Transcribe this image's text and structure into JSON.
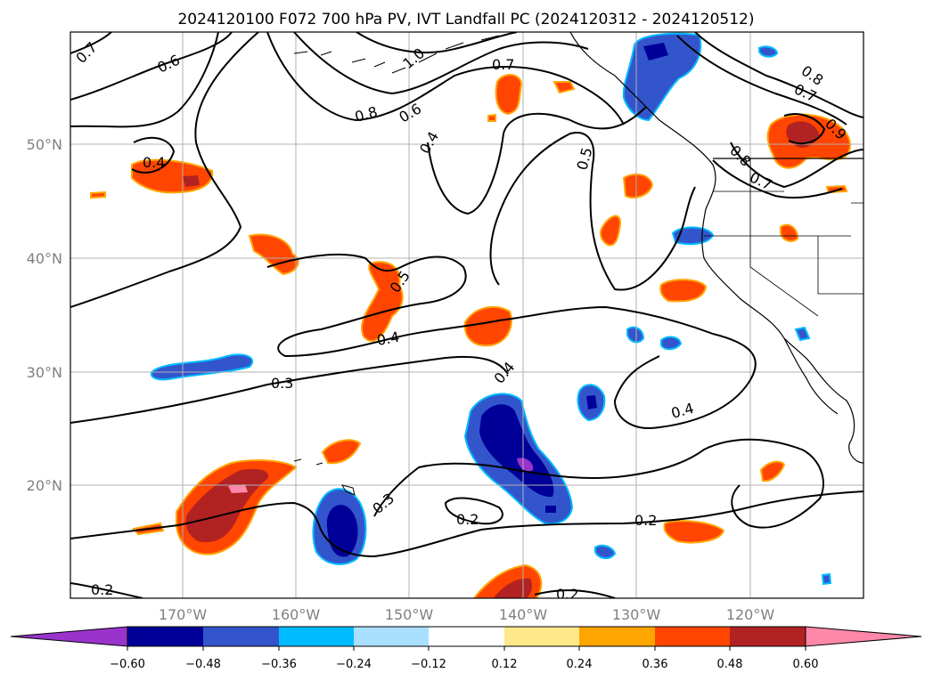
{
  "title": "2024120100 F072 700 hPa PV, IVT Landfall PC (2024120312 - 2024120512)",
  "lat_ticks": [
    "50°N",
    "40°N",
    "30°N",
    "20°N"
  ],
  "lon_ticks": [
    "170°W",
    "160°W",
    "150°W",
    "140°W",
    "130°W",
    "120°W"
  ],
  "colorbar": {
    "ticks": [
      "−0.60",
      "−0.48",
      "−0.36",
      "−0.24",
      "−0.12",
      "0.12",
      "0.24",
      "0.36",
      "0.48",
      "0.60"
    ],
    "colors": [
      "#9933cc",
      "#000099",
      "#3355cc",
      "#00bbff",
      "#aae0ff",
      "#ffffff",
      "#ffe88a",
      "#ffa500",
      "#ff4500",
      "#b22222",
      "#ff88aa"
    ]
  },
  "contour_labels": [
    "0.7",
    "0.6",
    "1.0",
    "0.7",
    "0.8",
    "0.6",
    "0.4",
    "0.5",
    "0.8",
    "0.7",
    "0.9",
    "0.8",
    "0.7",
    "0.4",
    "0.5",
    "0.4",
    "0.3",
    "0.4",
    "0.4",
    "0.3",
    "0.2",
    "0.2",
    "0.2",
    "0.2"
  ],
  "fill_colors": {
    "orange": "#ff4500",
    "darkred": "#b22222",
    "pink": "#ff88aa",
    "blue": "#3355cc",
    "navy": "#000099",
    "purple": "#9933cc",
    "cyan": "#00bbff"
  }
}
